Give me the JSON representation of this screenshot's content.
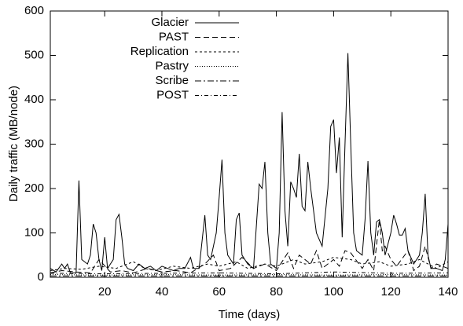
{
  "chart_data": {
    "type": "line",
    "xlabel": "Time (days)",
    "ylabel": "Daily traffic (MB/node)",
    "xlim": [
      1,
      140
    ],
    "ylim": [
      0,
      600
    ],
    "xticks": [
      20,
      40,
      60,
      80,
      100,
      120,
      140
    ],
    "yticks": [
      0,
      100,
      200,
      300,
      400,
      500,
      600
    ],
    "legend": "top-left",
    "series": [
      {
        "name": "Glacier",
        "color": "#000000",
        "dash": "none",
        "x": [
          1,
          3,
          5,
          6,
          7,
          8,
          10,
          11,
          12,
          14,
          15,
          16,
          17,
          18,
          19,
          20,
          21,
          22,
          23,
          24,
          25,
          26,
          27,
          28,
          30,
          32,
          34,
          36,
          38,
          40,
          42,
          44,
          46,
          48,
          50,
          51,
          53,
          55,
          56,
          57,
          59,
          60,
          61,
          62,
          63,
          65,
          66,
          67,
          68,
          70,
          72,
          74,
          75,
          76,
          77,
          78,
          80,
          81,
          82,
          83,
          84,
          85,
          86,
          87,
          88,
          89,
          90,
          91,
          92,
          94,
          96,
          98,
          99,
          100,
          101,
          102,
          103,
          104,
          105,
          106,
          107,
          108,
          110,
          111,
          112,
          113,
          114,
          115,
          116,
          117,
          118,
          120,
          121,
          122,
          123,
          124,
          125,
          126,
          128,
          130,
          131,
          132,
          133,
          134,
          136,
          138,
          139,
          140
        ],
        "values": [
          20,
          12,
          30,
          20,
          30,
          10,
          10,
          218,
          40,
          30,
          50,
          120,
          100,
          40,
          15,
          90,
          20,
          30,
          40,
          130,
          142,
          90,
          30,
          20,
          15,
          30,
          20,
          25,
          15,
          25,
          20,
          15,
          20,
          20,
          45,
          20,
          20,
          140,
          50,
          40,
          100,
          180,
          265,
          100,
          50,
          30,
          130,
          145,
          50,
          30,
          20,
          210,
          200,
          260,
          100,
          30,
          20,
          100,
          372,
          150,
          70,
          215,
          200,
          180,
          278,
          160,
          150,
          260,
          200,
          100,
          70,
          200,
          340,
          355,
          235,
          315,
          90,
          300,
          505,
          300,
          100,
          60,
          50,
          130,
          262,
          100,
          50,
          125,
          130,
          100,
          50,
          100,
          140,
          120,
          95,
          95,
          110,
          60,
          30,
          50,
          100,
          188,
          50,
          20,
          20,
          15,
          40,
          120
        ]
      },
      {
        "name": "PAST",
        "color": "#000000",
        "dash": "7 4",
        "x": [
          1,
          5,
          10,
          15,
          18,
          22,
          26,
          30,
          35,
          40,
          45,
          50,
          55,
          58,
          60,
          64,
          68,
          72,
          76,
          80,
          84,
          86,
          88,
          92,
          94,
          96,
          100,
          102,
          104,
          106,
          110,
          112,
          114,
          116,
          117,
          118,
          120,
          122,
          126,
          128,
          130,
          132,
          134,
          136,
          140
        ],
        "values": [
          10,
          15,
          12,
          10,
          40,
          12,
          15,
          10,
          20,
          12,
          15,
          10,
          30,
          50,
          15,
          20,
          45,
          20,
          30,
          15,
          55,
          20,
          50,
          30,
          60,
          20,
          40,
          25,
          60,
          55,
          20,
          40,
          15,
          130,
          60,
          70,
          40,
          25,
          60,
          15,
          25,
          70,
          20,
          30,
          20
        ]
      },
      {
        "name": "Replication",
        "color": "#000000",
        "dash": "3 3",
        "x": [
          1,
          6,
          12,
          18,
          24,
          30,
          34,
          38,
          44,
          50,
          56,
          60,
          66,
          70,
          76,
          80,
          86,
          90,
          96,
          100,
          106,
          110,
          116,
          120,
          126,
          130,
          136,
          140
        ],
        "values": [
          15,
          20,
          18,
          25,
          20,
          35,
          20,
          15,
          25,
          20,
          30,
          25,
          35,
          20,
          30,
          25,
          40,
          30,
          35,
          45,
          40,
          30,
          35,
          25,
          30,
          40,
          20,
          35
        ]
      },
      {
        "name": "Pastry",
        "color": "#000000",
        "dash": "1 2",
        "x": [
          1,
          20,
          40,
          60,
          80,
          100,
          120,
          140
        ],
        "values": [
          6,
          5,
          6,
          5,
          6,
          5,
          6,
          5
        ]
      },
      {
        "name": "Scribe",
        "color": "#000000",
        "dash": "8 3 2 3",
        "x": [
          1,
          20,
          40,
          60,
          80,
          100,
          120,
          140
        ],
        "values": [
          3,
          3,
          3,
          3,
          3,
          3,
          3,
          3
        ]
      },
      {
        "name": "POST",
        "color": "#000000",
        "dash": "5 3 1 3",
        "x": [
          1,
          20,
          40,
          60,
          80,
          100,
          120,
          140
        ],
        "values": [
          9,
          8,
          9,
          10,
          8,
          12,
          9,
          10
        ]
      }
    ]
  }
}
